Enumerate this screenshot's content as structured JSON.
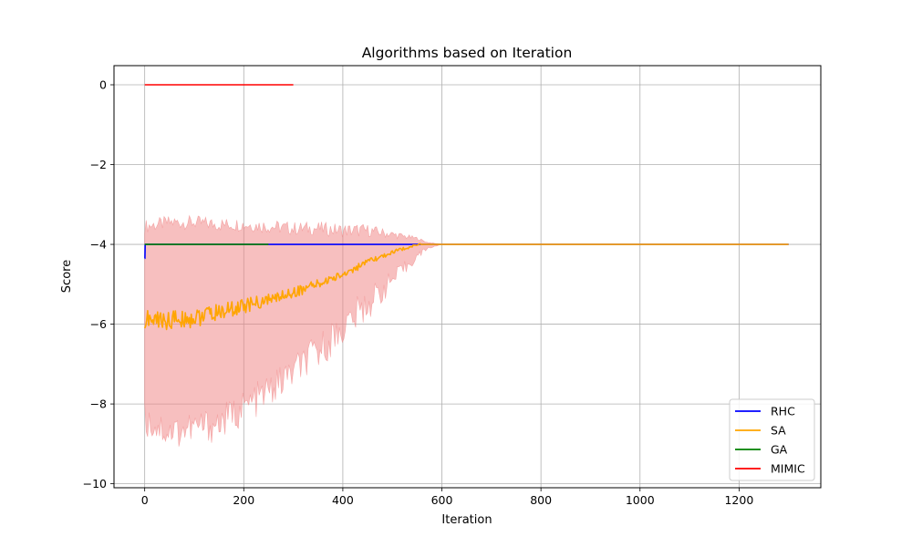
{
  "chart_data": {
    "type": "line",
    "title": "Algorithms based on Iteration",
    "xlabel": "Iteration",
    "ylabel": "Score",
    "xlim": [
      -62,
      1365
    ],
    "ylim": [
      -10.1,
      0.48
    ],
    "xticks": [
      0,
      200,
      400,
      600,
      800,
      1000,
      1200
    ],
    "yticks": [
      0,
      -2,
      -4,
      -6,
      -8,
      -10
    ],
    "xtick_labels": [
      "0",
      "200",
      "400",
      "600",
      "800",
      "1000",
      "1200"
    ],
    "ytick_labels": [
      "0",
      "−2",
      "−4",
      "−6",
      "−8",
      "−10"
    ],
    "grid": true,
    "legend_position": "lower-right",
    "series": [
      {
        "name": "RHC",
        "color": "#0000ff",
        "x": [
          0,
          0.5,
          1,
          1300
        ],
        "y": [
          -4.35,
          -4.35,
          -4.0,
          -4.0
        ]
      },
      {
        "name": "SA",
        "color": "#ffa500",
        "x": [
          0,
          50,
          100,
          150,
          200,
          250,
          300,
          350,
          400,
          450,
          500,
          550,
          600,
          1300
        ],
        "y": [
          -5.9,
          -5.9,
          -5.85,
          -5.7,
          -5.55,
          -5.4,
          -5.2,
          -5.0,
          -4.75,
          -4.45,
          -4.2,
          -4.0,
          -4.0,
          -4.0
        ],
        "band": {
          "color": "#f08080",
          "upper_x": [
            0,
            50,
            100,
            150,
            200,
            250,
            300,
            350,
            400,
            450,
            500,
            550,
            570,
            600
          ],
          "upper": [
            -3.55,
            -3.45,
            -3.45,
            -3.5,
            -3.5,
            -3.55,
            -3.6,
            -3.6,
            -3.65,
            -3.65,
            -3.75,
            -3.85,
            -3.95,
            -4.0
          ],
          "lower_x": [
            0,
            50,
            100,
            150,
            200,
            250,
            300,
            350,
            400,
            450,
            500,
            550,
            570,
            600
          ],
          "lower": [
            -8.4,
            -8.7,
            -8.6,
            -8.5,
            -8.1,
            -7.7,
            -7.2,
            -6.7,
            -6.1,
            -5.5,
            -4.9,
            -4.3,
            -4.1,
            -4.0
          ]
        }
      },
      {
        "name": "GA",
        "color": "#008000",
        "x": [
          0,
          250
        ],
        "y": [
          -4.0,
          -4.0
        ]
      },
      {
        "name": "MIMIC",
        "color": "#ff0000",
        "x": [
          0,
          300
        ],
        "y": [
          0.0,
          0.0
        ]
      }
    ]
  }
}
